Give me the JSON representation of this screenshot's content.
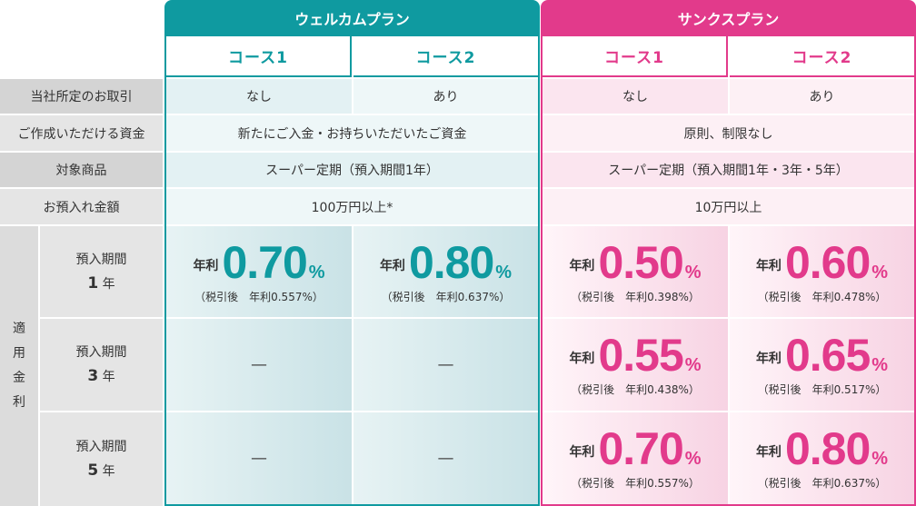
{
  "plans": {
    "welcome": {
      "title": "ウェルカムプラン",
      "course1": "コース1",
      "course2": "コース2",
      "color": "#0f9aa0"
    },
    "thanks": {
      "title": "サンクスプラン",
      "course1": "コース1",
      "course2": "コース2",
      "color": "#e23a8b"
    }
  },
  "rows": {
    "transaction": {
      "label": "当社所定のお取引",
      "w1": "なし",
      "w2": "あり",
      "t1": "なし",
      "t2": "あり"
    },
    "funds": {
      "label": "ご作成いただける資金",
      "welcome": "新たにご入金・お持ちいただいたご資金",
      "thanks": "原則、制限なし"
    },
    "product": {
      "label": "対象商品",
      "welcome": "スーパー定期（預入期間1年）",
      "thanks": "スーパー定期（預入期間1年・3年・5年）"
    },
    "amount": {
      "label": "お預入れ金額",
      "welcome": "100万円以上*",
      "thanks": "10万円以上"
    }
  },
  "applied_rate": {
    "label_chars": [
      "適",
      "用",
      "金",
      "利"
    ],
    "period_label": "預入期間",
    "year_unit": "年",
    "rate_prefix": "年利",
    "percent": "%",
    "dash": "—",
    "periods": [
      {
        "years": "1",
        "w1": {
          "value": "0.70",
          "note": "（税引後　年利0.557%）"
        },
        "w2": {
          "value": "0.80",
          "note": "（税引後　年利0.637%）"
        },
        "t1": {
          "value": "0.50",
          "note": "（税引後　年利0.398%）"
        },
        "t2": {
          "value": "0.60",
          "note": "（税引後　年利0.478%）"
        }
      },
      {
        "years": "3",
        "t1": {
          "value": "0.55",
          "note": "（税引後　年利0.438%）"
        },
        "t2": {
          "value": "0.65",
          "note": "（税引後　年利0.517%）"
        }
      },
      {
        "years": "5",
        "t1": {
          "value": "0.70",
          "note": "（税引後　年利0.557%）"
        },
        "t2": {
          "value": "0.80",
          "note": "（税引後　年利0.637%）"
        }
      }
    ]
  }
}
